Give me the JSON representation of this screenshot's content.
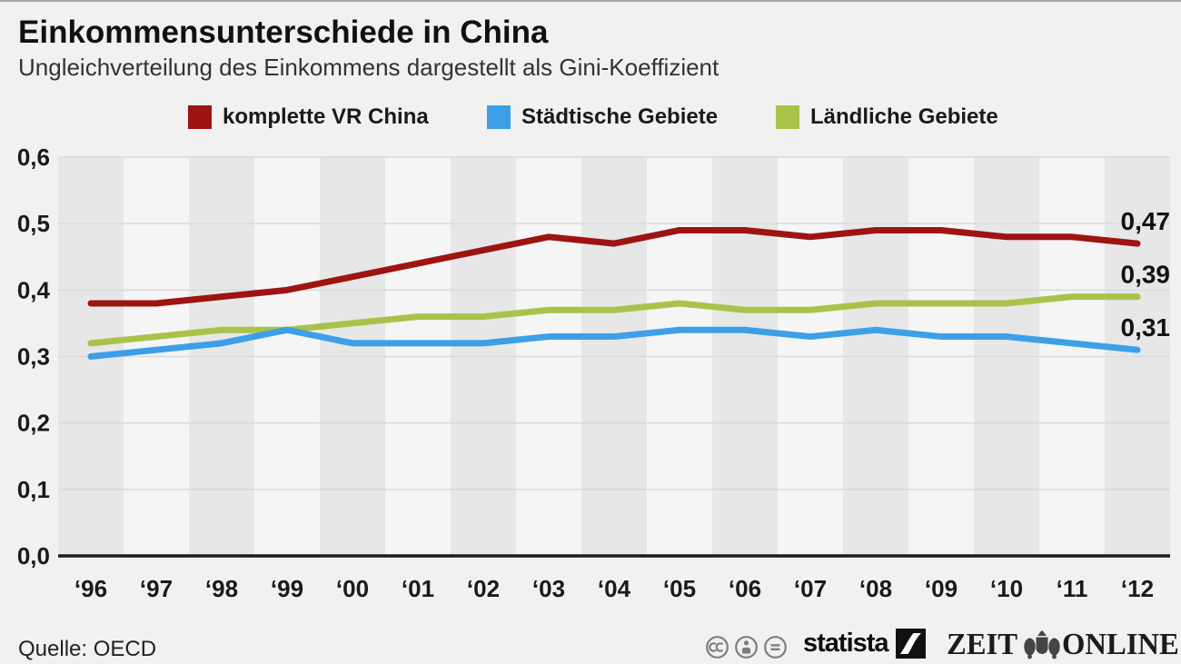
{
  "header": {
    "title": "Einkommensunterschiede in China",
    "subtitle": "Ungleichverteilung des Einkommens dargestellt als Gini-Koeffizient"
  },
  "legend": {
    "items": [
      {
        "label": "komplette VR China",
        "color": "#9e1410"
      },
      {
        "label": "Städtische Gebiete",
        "color": "#3d9fe8"
      },
      {
        "label": "Ländliche Gebiete",
        "color": "#a9c34a"
      }
    ]
  },
  "chart_data": {
    "type": "line",
    "title": "Einkommensunterschiede in China",
    "subtitle": "Ungleichverteilung des Einkommens dargestellt als Gini-Koeffizient",
    "x_tick_labels": [
      "‘96",
      "‘97",
      "‘98",
      "‘99",
      "‘00",
      "‘01",
      "‘02",
      "‘03",
      "‘04",
      "‘05",
      "‘06",
      "‘07",
      "‘08",
      "‘09",
      "‘10",
      "‘11",
      "‘12"
    ],
    "years": [
      1996,
      1997,
      1998,
      1999,
      2000,
      2001,
      2002,
      2003,
      2004,
      2005,
      2006,
      2007,
      2008,
      2009,
      2010,
      2011,
      2012
    ],
    "series": [
      {
        "name": "komplette VR China",
        "color": "#9e1410",
        "values": [
          0.38,
          0.38,
          0.39,
          0.4,
          0.42,
          0.44,
          0.46,
          0.48,
          0.47,
          0.49,
          0.49,
          0.48,
          0.49,
          0.49,
          0.48,
          0.48,
          0.47
        ],
        "end_label": "0,47"
      },
      {
        "name": "Ländliche Gebiete",
        "color": "#a9c34a",
        "values": [
          0.32,
          0.33,
          0.34,
          0.34,
          0.35,
          0.36,
          0.36,
          0.37,
          0.37,
          0.38,
          0.37,
          0.37,
          0.38,
          0.38,
          0.38,
          0.39,
          0.39
        ],
        "end_label": "0,39"
      },
      {
        "name": "Städtische Gebiete",
        "color": "#3d9fe8",
        "values": [
          0.3,
          0.31,
          0.32,
          0.34,
          0.32,
          0.32,
          0.32,
          0.33,
          0.33,
          0.34,
          0.34,
          0.33,
          0.34,
          0.33,
          0.33,
          0.32,
          0.31
        ],
        "end_label": "0,31"
      }
    ],
    "ylim": [
      0.0,
      0.6
    ],
    "y_tick_labels": [
      "0,0",
      "0,1",
      "0,2",
      "0,3",
      "0,4",
      "0,5",
      "0,6"
    ],
    "grid": "horizontal",
    "background_stripes": {
      "dark": "#e7e7e7",
      "light": "#f5f5f5"
    },
    "grid_color": "#dadada",
    "axis_color": "#1a1a1a",
    "legend_position": "top"
  },
  "footer": {
    "source": "Quelle: OECD",
    "cc_badges": [
      "cc",
      "by",
      "nd"
    ],
    "statista_label": "statista",
    "zeit_left": "ZEIT",
    "zeit_right": "ONLINE"
  }
}
